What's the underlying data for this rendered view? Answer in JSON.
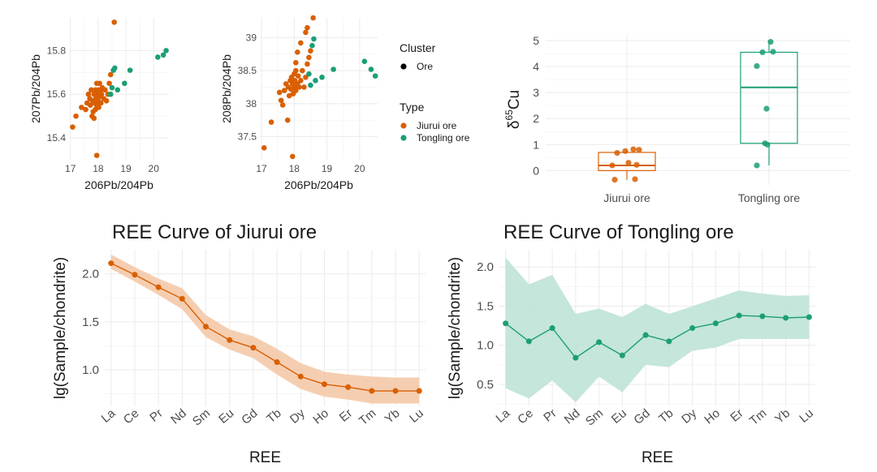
{
  "colors": {
    "jiurui": "#d95f02",
    "tongling": "#1b9e77",
    "jiurui_band": "#f4c9a8",
    "tongling_band": "#bfe3d6"
  },
  "legend": {
    "cluster_title": "Cluster",
    "cluster_items": [
      "Ore"
    ],
    "type_title": "Type",
    "type_items": [
      "Jiurui ore",
      "Tongling ore"
    ]
  },
  "chart_data": [
    {
      "id": "pb207",
      "type": "scatter",
      "title": "",
      "xlabel": "206Pb/204Pb",
      "ylabel": "207Pb/204Pb",
      "xlim": [
        16.95,
        20.55
      ],
      "ylim": [
        15.3,
        15.95
      ],
      "xticks": [
        17,
        18,
        19,
        20
      ],
      "yticks": [
        15.4,
        15.6,
        15.8
      ],
      "series": [
        {
          "name": "Jiurui ore",
          "points": [
            [
              17.08,
              15.45
            ],
            [
              17.2,
              15.5
            ],
            [
              17.4,
              15.54
            ],
            [
              17.55,
              15.53
            ],
            [
              17.6,
              15.56
            ],
            [
              17.65,
              15.6
            ],
            [
              17.7,
              15.58
            ],
            [
              17.72,
              15.55
            ],
            [
              17.75,
              15.62
            ],
            [
              17.78,
              15.5
            ],
            [
              17.8,
              15.57
            ],
            [
              17.82,
              15.52
            ],
            [
              17.85,
              15.6
            ],
            [
              17.85,
              15.49
            ],
            [
              17.88,
              15.56
            ],
            [
              17.9,
              15.62
            ],
            [
              17.9,
              15.53
            ],
            [
              17.92,
              15.58
            ],
            [
              17.95,
              15.65
            ],
            [
              17.95,
              15.55
            ],
            [
              17.97,
              15.6
            ],
            [
              18.0,
              15.57
            ],
            [
              18.0,
              15.62
            ],
            [
              18.02,
              15.54
            ],
            [
              18.05,
              15.59
            ],
            [
              18.05,
              15.65
            ],
            [
              18.08,
              15.61
            ],
            [
              18.1,
              15.56
            ],
            [
              18.12,
              15.6
            ],
            [
              18.15,
              15.63
            ],
            [
              18.2,
              15.58
            ],
            [
              18.25,
              15.62
            ],
            [
              18.3,
              15.57
            ],
            [
              18.35,
              15.6
            ],
            [
              18.4,
              15.65
            ],
            [
              18.45,
              15.69
            ],
            [
              17.95,
              15.32
            ],
            [
              18.58,
              15.93
            ]
          ]
        },
        {
          "name": "Tongling ore",
          "points": [
            [
              18.45,
              15.6
            ],
            [
              18.5,
              15.63
            ],
            [
              18.55,
              15.71
            ],
            [
              18.6,
              15.72
            ],
            [
              18.7,
              15.62
            ],
            [
              18.95,
              15.65
            ],
            [
              19.15,
              15.71
            ],
            [
              20.15,
              15.77
            ],
            [
              20.35,
              15.78
            ],
            [
              20.45,
              15.8
            ]
          ]
        }
      ]
    },
    {
      "id": "pb208",
      "type": "scatter",
      "title": "",
      "xlabel": "206Pb/204Pb",
      "ylabel": "208Pb/204Pb",
      "xlim": [
        16.95,
        20.55
      ],
      "ylim": [
        37.15,
        39.3
      ],
      "xticks": [
        17,
        18,
        19,
        20
      ],
      "yticks": [
        37.5,
        38.0,
        38.5,
        39.0
      ],
      "series": [
        {
          "name": "Jiurui ore",
          "points": [
            [
              17.08,
              37.33
            ],
            [
              17.3,
              37.72
            ],
            [
              17.55,
              38.17
            ],
            [
              17.6,
              38.05
            ],
            [
              17.65,
              37.98
            ],
            [
              17.7,
              38.2
            ],
            [
              17.75,
              38.3
            ],
            [
              17.8,
              37.75
            ],
            [
              17.82,
              38.25
            ],
            [
              17.85,
              38.12
            ],
            [
              17.88,
              38.35
            ],
            [
              17.9,
              38.22
            ],
            [
              17.92,
              38.4
            ],
            [
              17.95,
              38.3
            ],
            [
              17.97,
              38.15
            ],
            [
              18.0,
              38.25
            ],
            [
              18.0,
              38.45
            ],
            [
              18.02,
              38.35
            ],
            [
              18.05,
              38.2
            ],
            [
              18.05,
              38.5
            ],
            [
              18.1,
              38.3
            ],
            [
              18.12,
              38.42
            ],
            [
              18.15,
              38.25
            ],
            [
              18.2,
              38.35
            ],
            [
              18.25,
              38.5
            ],
            [
              18.3,
              38.25
            ],
            [
              18.35,
              38.4
            ],
            [
              18.4,
              38.6
            ],
            [
              18.45,
              38.7
            ],
            [
              18.5,
              38.8
            ],
            [
              18.05,
              38.62
            ],
            [
              18.1,
              38.78
            ],
            [
              18.35,
              39.08
            ],
            [
              18.4,
              39.15
            ],
            [
              18.2,
              38.92
            ],
            [
              18.58,
              39.3
            ],
            [
              17.95,
              37.2
            ]
          ]
        },
        {
          "name": "Tongling ore",
          "points": [
            [
              18.45,
              38.45
            ],
            [
              18.5,
              38.28
            ],
            [
              18.55,
              38.88
            ],
            [
              18.6,
              38.98
            ],
            [
              18.65,
              38.35
            ],
            [
              18.85,
              38.4
            ],
            [
              19.2,
              38.52
            ],
            [
              20.15,
              38.64
            ],
            [
              20.35,
              38.52
            ],
            [
              20.48,
              38.42
            ]
          ]
        }
      ]
    },
    {
      "id": "cu",
      "type": "box",
      "title": "",
      "xlabel": "",
      "ylabel_main": "δ",
      "ylabel_sup": "65",
      "ylabel_tail": "Cu",
      "ylim": [
        -0.55,
        5.25
      ],
      "yticks": [
        0,
        1,
        2,
        3,
        4,
        5
      ],
      "categories": [
        "Jiurui ore",
        "Tongling ore"
      ],
      "boxes": [
        {
          "name": "Jiurui ore",
          "lower_whisker": -0.35,
          "q1": 0.0,
          "median": 0.2,
          "q3": 0.7,
          "upper_whisker": 0.8
        },
        {
          "name": "Tongling ore",
          "lower_whisker": 0.2,
          "q1": 1.05,
          "median": 3.2,
          "q3": 4.55,
          "upper_whisker": 5.0
        }
      ],
      "points": [
        [
          [
            -0.12,
            0.68
          ],
          [
            -0.02,
            0.75
          ],
          [
            0.08,
            0.82
          ],
          [
            0.15,
            0.8
          ],
          [
            -0.18,
            0.2
          ],
          [
            0.02,
            0.3
          ],
          [
            0.12,
            0.22
          ],
          [
            -0.15,
            -0.35
          ],
          [
            0.1,
            -0.33
          ]
        ],
        [
          [
            0.02,
            4.95
          ],
          [
            -0.08,
            4.55
          ],
          [
            0.05,
            4.57
          ],
          [
            -0.15,
            4.02
          ],
          [
            -0.03,
            2.38
          ],
          [
            -0.05,
            1.05
          ],
          [
            -0.02,
            1.0
          ],
          [
            -0.15,
            0.2
          ]
        ]
      ]
    },
    {
      "id": "ree-jiurui",
      "type": "line",
      "title": "REE Curve of Jiurui ore",
      "xlabel": "REE",
      "ylabel": "lg(Sample/chondrite)",
      "categories": [
        "La",
        "Ce",
        "Pr",
        "Nd",
        "Sm",
        "Eu",
        "Gd",
        "Tb",
        "Dy",
        "Ho",
        "Er",
        "Tm",
        "Yb",
        "Lu"
      ],
      "ylim": [
        0.62,
        2.25
      ],
      "yticks": [
        1.0,
        1.5,
        2.0
      ],
      "values": [
        2.11,
        1.99,
        1.86,
        1.74,
        1.45,
        1.31,
        1.23,
        1.08,
        0.93,
        0.85,
        0.82,
        0.78,
        0.78,
        0.78
      ],
      "lower": [
        2.05,
        1.92,
        1.78,
        1.63,
        1.34,
        1.21,
        1.12,
        0.95,
        0.8,
        0.72,
        0.69,
        0.65,
        0.65,
        0.65
      ],
      "upper": [
        2.2,
        2.07,
        1.95,
        1.85,
        1.57,
        1.42,
        1.35,
        1.22,
        1.07,
        0.98,
        0.95,
        0.93,
        0.92,
        0.92
      ]
    },
    {
      "id": "ree-tongling",
      "type": "line",
      "title": "REE Curve of Tongling ore",
      "xlabel": "REE",
      "ylabel": "lg(Sample/chondrite)",
      "categories": [
        "La",
        "Ce",
        "Pr",
        "Nd",
        "Sm",
        "Eu",
        "Gd",
        "Tb",
        "Dy",
        "Ho",
        "Er",
        "Tm",
        "Yb",
        "Lu"
      ],
      "ylim": [
        0.22,
        2.22
      ],
      "yticks": [
        0.5,
        1.0,
        1.5,
        2.0
      ],
      "values": [
        1.28,
        1.05,
        1.22,
        0.84,
        1.04,
        0.87,
        1.13,
        1.05,
        1.22,
        1.28,
        1.38,
        1.37,
        1.35,
        1.36
      ],
      "lower": [
        0.45,
        0.32,
        0.55,
        0.27,
        0.6,
        0.4,
        0.75,
        0.72,
        0.93,
        0.97,
        1.08,
        1.08,
        1.08,
        1.08
      ],
      "upper": [
        2.12,
        1.78,
        1.9,
        1.4,
        1.47,
        1.36,
        1.53,
        1.4,
        1.5,
        1.6,
        1.7,
        1.66,
        1.63,
        1.64
      ]
    }
  ]
}
